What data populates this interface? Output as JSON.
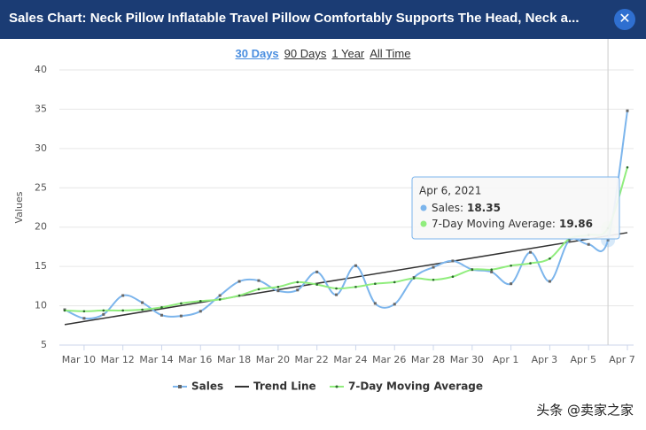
{
  "header": {
    "title": "Sales Chart: Neck Pillow Inflatable Travel Pillow Comfortably Supports The Head, Neck a...",
    "close": "✕"
  },
  "ranges": [
    "30 Days",
    "90 Days",
    "1 Year",
    "All Time"
  ],
  "watermark": "头条 @卖家之家",
  "chart_data": {
    "type": "line",
    "y_label": "Values",
    "categories": [
      null,
      "Mar 10",
      null,
      "Mar 12",
      null,
      "Mar 14",
      null,
      "Mar 16",
      null,
      "Mar 18",
      null,
      "Mar 20",
      null,
      "Mar 22",
      null,
      "Mar 24",
      null,
      "Mar 26",
      null,
      "Mar 28",
      null,
      "Mar 30",
      null,
      "Apr 1",
      null,
      "Apr 3",
      null,
      "Apr 5",
      null,
      "Apr 7"
    ],
    "ylim": [
      5,
      40
    ],
    "yticks": [
      5,
      10,
      15,
      20,
      25,
      30,
      35,
      40
    ],
    "grid": true,
    "series": [
      {
        "name": "Sales",
        "color": "#7cb5ec",
        "values": [
          9.5,
          8.4,
          8.9,
          11.3,
          10.4,
          8.8,
          8.7,
          9.3,
          11.3,
          13.1,
          13.2,
          11.9,
          12.0,
          14.3,
          11.4,
          15.1,
          10.3,
          10.2,
          13.6,
          14.9,
          15.7,
          14.6,
          14.3,
          12.8,
          16.8,
          13.1,
          18.3,
          17.8,
          18.35,
          34.8
        ]
      },
      {
        "name": "7-Day Moving Average",
        "color": "#90ed7d",
        "values": [
          9.4,
          9.3,
          9.4,
          9.4,
          9.5,
          9.8,
          10.3,
          10.6,
          10.8,
          11.3,
          12.1,
          12.4,
          13.0,
          12.7,
          12.2,
          12.4,
          12.8,
          13.0,
          13.5,
          13.3,
          13.7,
          14.6,
          14.6,
          15.1,
          15.4,
          16.0,
          18.5,
          19.0,
          19.86,
          27.6
        ]
      }
    ],
    "trend": {
      "name": "Trend Line",
      "color": "#333333",
      "values": [
        7.6,
        19.3
      ]
    },
    "tooltip": {
      "date": "Apr 6, 2021",
      "index": 28,
      "items": [
        "Sales:",
        "7-Day Moving Average:"
      ]
    }
  }
}
